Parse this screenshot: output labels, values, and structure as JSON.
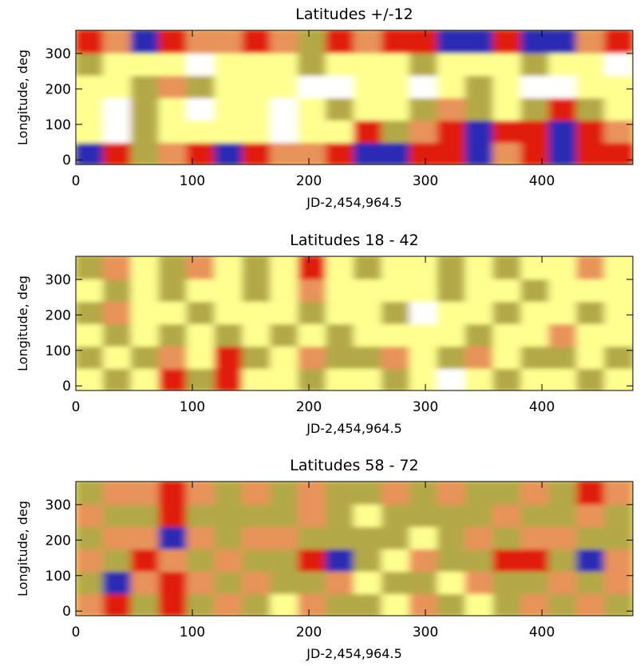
{
  "chart_data": [
    {
      "type": "heatmap",
      "title": "Latitudes +/-12",
      "xlabel": "JD-2,454,964.5",
      "ylabel": "Longitude, deg",
      "xlim": [
        0,
        478
      ],
      "ylim": [
        -13,
        365
      ],
      "xticks": [
        0,
        100,
        200,
        300,
        400
      ],
      "yticks": [
        0,
        100,
        200,
        300
      ],
      "colors": [
        "#ffffff",
        "#ffff90",
        "#b3a846",
        "#e8935a",
        "#e01e0a",
        "#2a2ab4"
      ],
      "z": [
        [
          5,
          4,
          2,
          3,
          4,
          5,
          4,
          3,
          3,
          4,
          5,
          5,
          4,
          4,
          5,
          3,
          4,
          5,
          4,
          4
        ],
        [
          1,
          0,
          2,
          1,
          1,
          1,
          1,
          0,
          1,
          1,
          4,
          2,
          3,
          4,
          5,
          4,
          4,
          5,
          4,
          3
        ],
        [
          1,
          0,
          2,
          1,
          0,
          1,
          1,
          0,
          1,
          2,
          1,
          1,
          2,
          3,
          2,
          1,
          2,
          4,
          2,
          1
        ],
        [
          1,
          1,
          2,
          3,
          2,
          1,
          1,
          1,
          0,
          0,
          1,
          1,
          0,
          1,
          2,
          1,
          0,
          0,
          1,
          1
        ],
        [
          2,
          1,
          1,
          1,
          0,
          1,
          1,
          1,
          2,
          1,
          1,
          1,
          2,
          1,
          1,
          1,
          2,
          1,
          1,
          0
        ],
        [
          4,
          3,
          5,
          4,
          3,
          3,
          4,
          3,
          2,
          4,
          3,
          4,
          4,
          5,
          5,
          4,
          5,
          5,
          3,
          4
        ]
      ]
    },
    {
      "type": "heatmap",
      "title": "Latitudes 18 - 42",
      "xlabel": "JD-2,454,964.5",
      "ylabel": "Longitude, deg",
      "xlim": [
        0,
        478
      ],
      "ylim": [
        -13,
        365
      ],
      "xticks": [
        0,
        100,
        200,
        300,
        400
      ],
      "yticks": [
        0,
        100,
        200,
        300
      ],
      "colors": [
        "#ffffff",
        "#ffff90",
        "#b3a846",
        "#e8935a",
        "#e01e0a",
        "#2a2ab4"
      ],
      "z": [
        [
          1,
          2,
          1,
          4,
          2,
          4,
          1,
          1,
          2,
          1,
          1,
          2,
          1,
          0,
          1,
          2,
          1,
          1,
          2,
          1
        ],
        [
          2,
          1,
          2,
          3,
          1,
          4,
          2,
          1,
          3,
          2,
          2,
          3,
          1,
          2,
          3,
          1,
          2,
          2,
          1,
          2
        ],
        [
          1,
          2,
          1,
          2,
          1,
          2,
          1,
          2,
          1,
          2,
          1,
          1,
          1,
          1,
          2,
          1,
          1,
          3,
          1,
          1
        ],
        [
          2,
          3,
          1,
          1,
          2,
          1,
          1,
          1,
          2,
          1,
          1,
          2,
          0,
          1,
          1,
          2,
          1,
          1,
          2,
          1
        ],
        [
          1,
          2,
          1,
          2,
          1,
          1,
          2,
          1,
          3,
          1,
          1,
          1,
          1,
          2,
          1,
          1,
          2,
          1,
          1,
          1
        ],
        [
          2,
          3,
          1,
          2,
          3,
          1,
          2,
          1,
          4,
          1,
          2,
          1,
          1,
          2,
          1,
          2,
          1,
          1,
          3,
          1
        ]
      ]
    },
    {
      "type": "heatmap",
      "title": "Latitudes 58 - 72",
      "xlabel": "JD-2,454,964.5",
      "ylabel": "Longitude, deg",
      "xlim": [
        0,
        478
      ],
      "ylim": [
        -13,
        365
      ],
      "xticks": [
        0,
        100,
        200,
        300,
        400
      ],
      "yticks": [
        0,
        100,
        200,
        300
      ],
      "colors": [
        "#ffffff",
        "#ffff90",
        "#b3a846",
        "#e8935a",
        "#e01e0a",
        "#2a2ab4"
      ],
      "z": [
        [
          3,
          4,
          2,
          4,
          2,
          3,
          2,
          1,
          3,
          2,
          2,
          1,
          3,
          2,
          1,
          2,
          3,
          2,
          3,
          2
        ],
        [
          2,
          5,
          3,
          4,
          3,
          2,
          3,
          2,
          2,
          3,
          1,
          2,
          2,
          1,
          3,
          2,
          2,
          3,
          2,
          3
        ],
        [
          3,
          2,
          4,
          3,
          2,
          3,
          2,
          2,
          4,
          5,
          2,
          1,
          3,
          2,
          2,
          4,
          4,
          2,
          5,
          3
        ],
        [
          2,
          3,
          3,
          5,
          3,
          2,
          3,
          3,
          2,
          2,
          2,
          2,
          1,
          2,
          3,
          2,
          3,
          3,
          2,
          2
        ],
        [
          3,
          2,
          2,
          4,
          2,
          2,
          2,
          2,
          3,
          2,
          1,
          2,
          2,
          2,
          2,
          3,
          2,
          2,
          3,
          2
        ],
        [
          2,
          3,
          3,
          4,
          3,
          2,
          3,
          2,
          3,
          2,
          2,
          3,
          2,
          3,
          2,
          2,
          3,
          2,
          4,
          3
        ]
      ]
    }
  ]
}
